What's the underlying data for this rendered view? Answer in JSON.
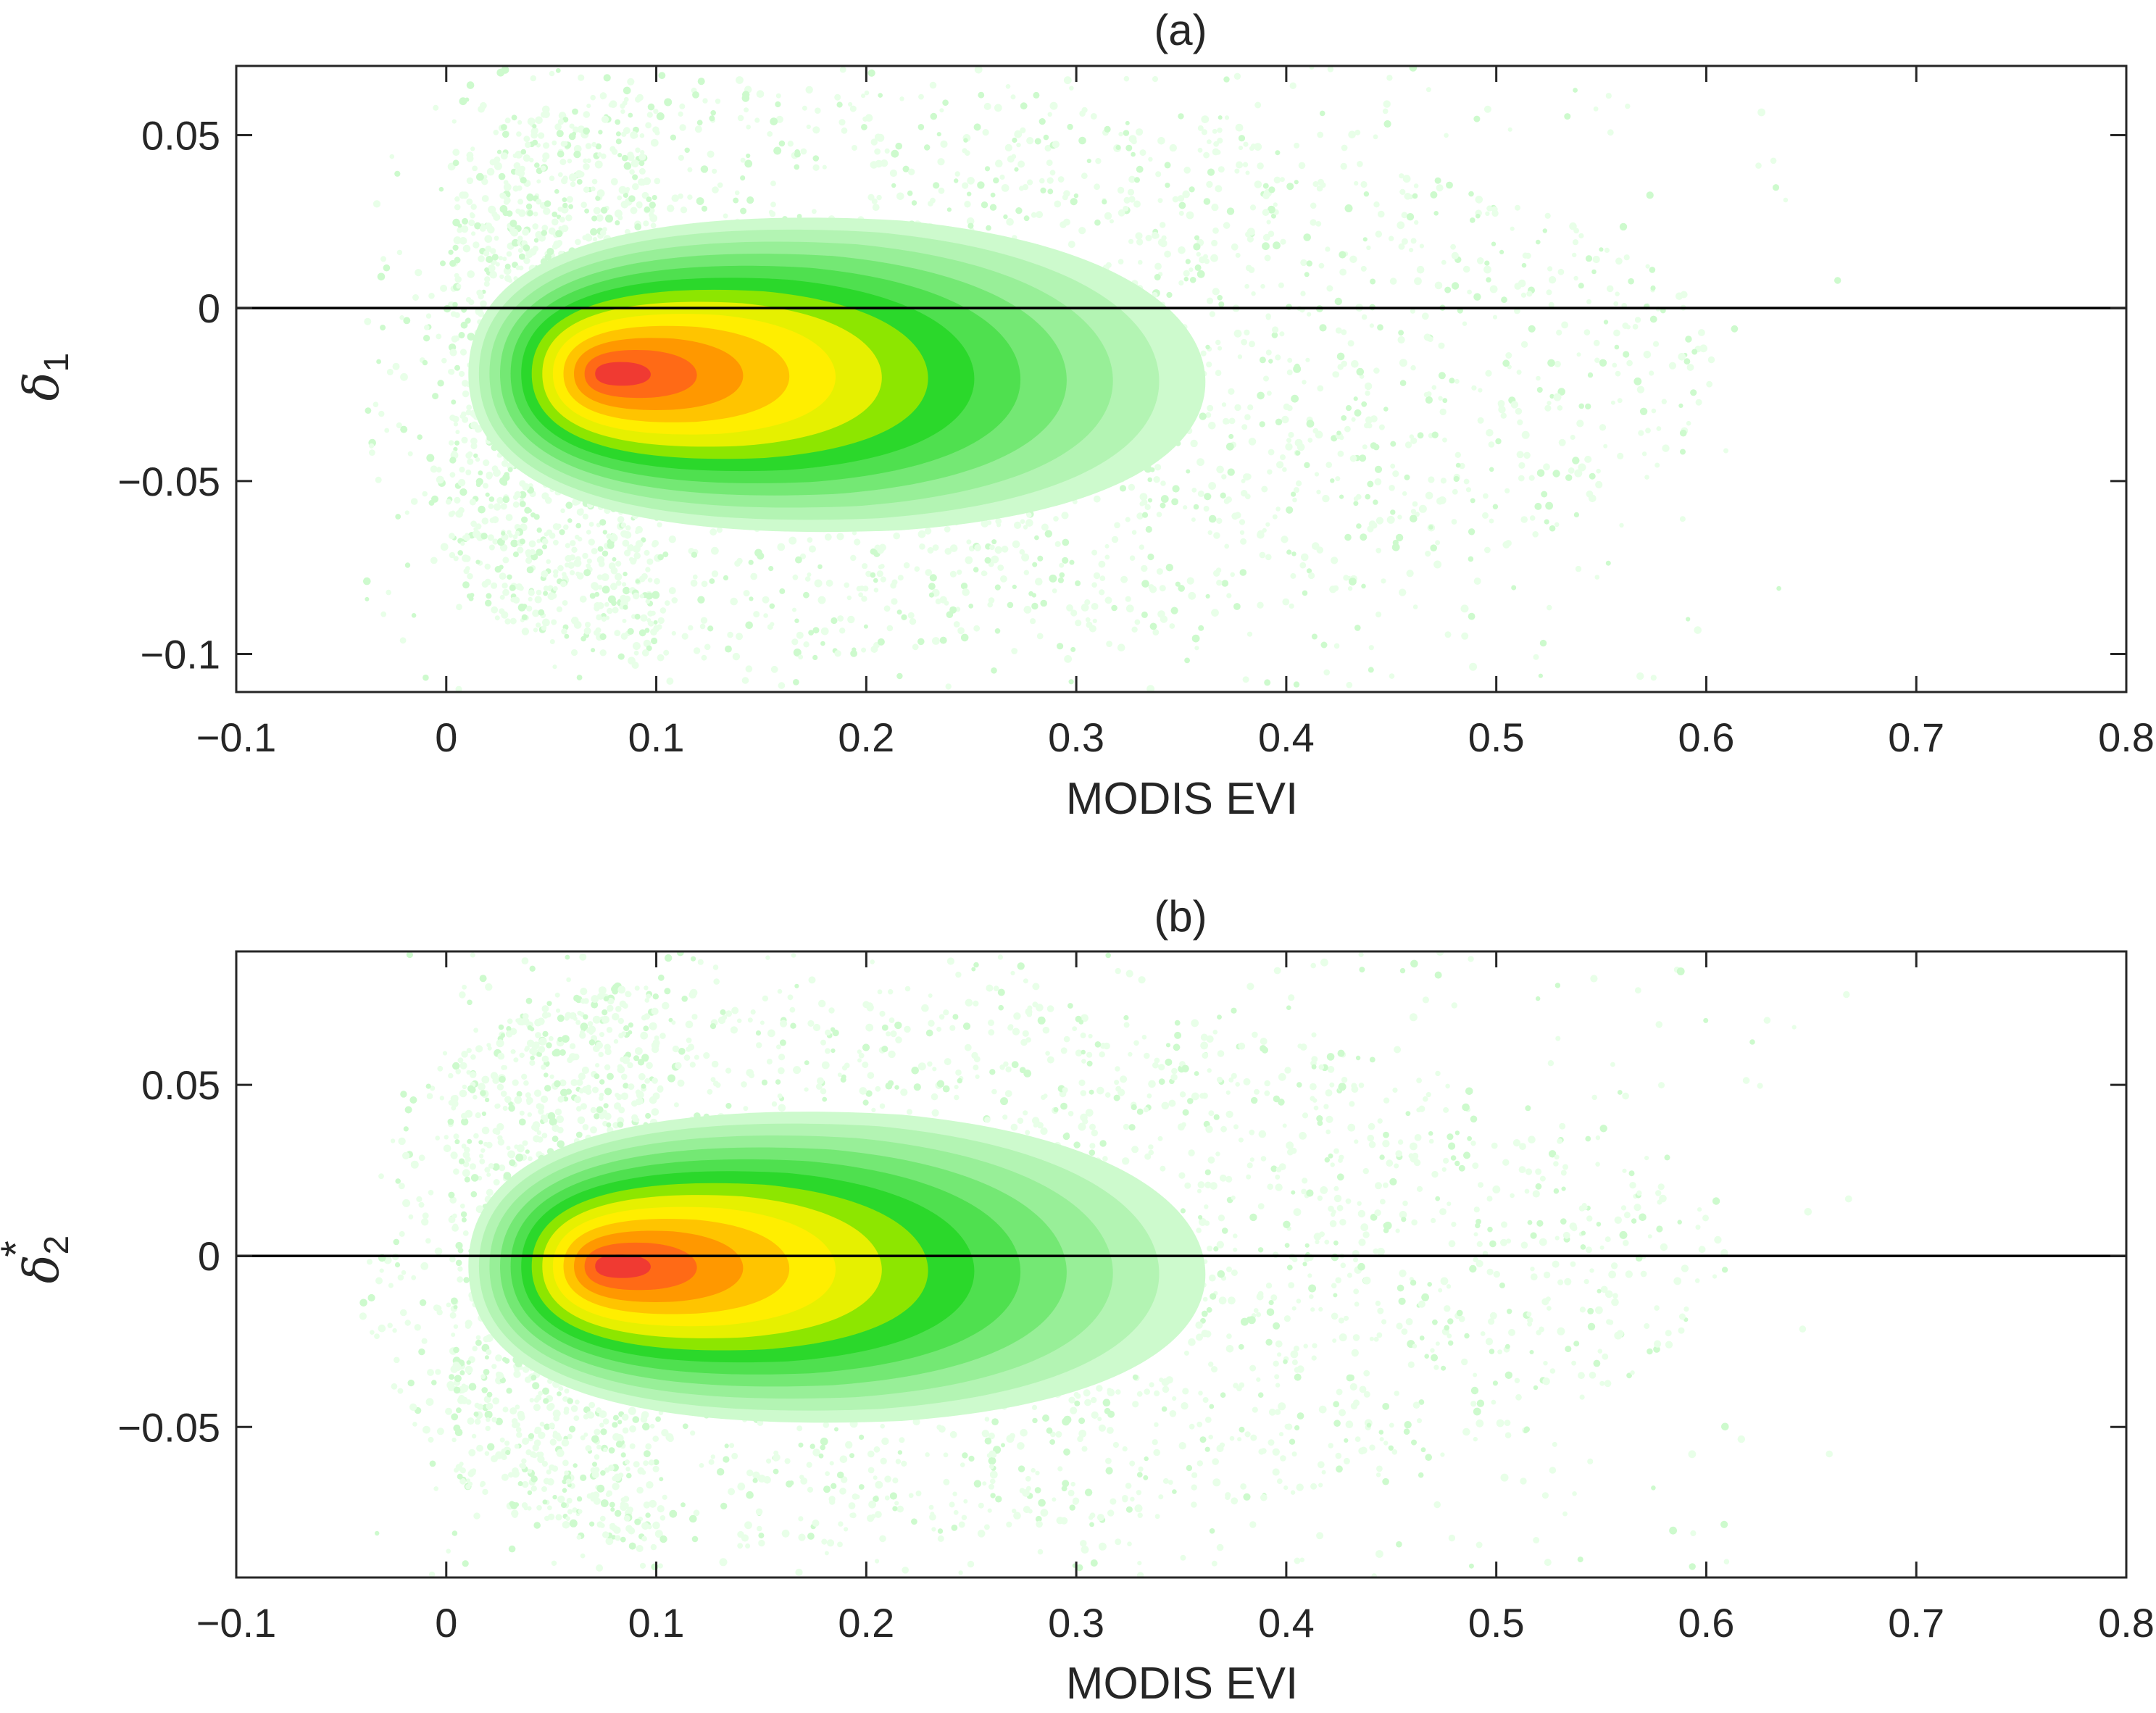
{
  "chart_data": [
    {
      "type": "heatmap",
      "panel_title": "(a)",
      "xlabel": "MODIS EVI",
      "ylabel": {
        "symbol": "δ",
        "subscript": "1",
        "superscript": ""
      },
      "xlim": [
        -0.1,
        0.8
      ],
      "ylim": [
        -0.111,
        0.07
      ],
      "xticks": [
        -0.1,
        0,
        0.1,
        0.2,
        0.3,
        0.4,
        0.5,
        0.6,
        0.7,
        0.8
      ],
      "xtick_labels": [
        "−0.1",
        "0",
        "0.1",
        "0.2",
        "0.3",
        "0.4",
        "0.5",
        "0.6",
        "0.7",
        "0.8"
      ],
      "yticks": [
        -0.1,
        -0.05,
        0,
        0.05
      ],
      "ytick_labels": [
        "−0.1",
        "−0.05",
        "0",
        "0.05"
      ],
      "reference_line_y": 0,
      "grid": false,
      "density_core": {
        "x": 0.1,
        "y": -0.019,
        "sx": 0.09,
        "sy": 0.018,
        "scatter_x_range": [
          -0.04,
          0.69
        ]
      },
      "colormap": [
        "#e8ffe8",
        "#cdfacd",
        "#b3f4b3",
        "#98ef98",
        "#74e874",
        "#4fe04f",
        "#2bd82b",
        "#8de600",
        "#e6f000",
        "#ffee00",
        "#ffc400",
        "#ff9800",
        "#ff6a16",
        "#f03a32"
      ]
    },
    {
      "type": "heatmap",
      "panel_title": "(b)",
      "xlabel": "MODIS EVI",
      "ylabel": {
        "symbol": "δ",
        "subscript": "2",
        "superscript": "*"
      },
      "xlim": [
        -0.1,
        0.8
      ],
      "ylim": [
        -0.094,
        0.089
      ],
      "xticks": [
        -0.1,
        0,
        0.1,
        0.2,
        0.3,
        0.4,
        0.5,
        0.6,
        0.7,
        0.8
      ],
      "xtick_labels": [
        "−0.1",
        "0",
        "0.1",
        "0.2",
        "0.3",
        "0.4",
        "0.5",
        "0.6",
        "0.7",
        "0.8"
      ],
      "yticks": [
        -0.05,
        0,
        0.05
      ],
      "ytick_labels": [
        "−0.05",
        "0",
        "0.05"
      ],
      "reference_line_y": 0,
      "grid": false,
      "density_core": {
        "x": 0.1,
        "y": -0.003,
        "sx": 0.09,
        "sy": 0.018,
        "scatter_x_range": [
          -0.04,
          0.69
        ]
      },
      "colormap": [
        "#e8ffe8",
        "#cdfacd",
        "#b3f4b3",
        "#98ef98",
        "#74e874",
        "#4fe04f",
        "#2bd82b",
        "#8de600",
        "#e6f000",
        "#ffee00",
        "#ffc400",
        "#ff9800",
        "#ff6a16",
        "#f03a32"
      ]
    }
  ]
}
